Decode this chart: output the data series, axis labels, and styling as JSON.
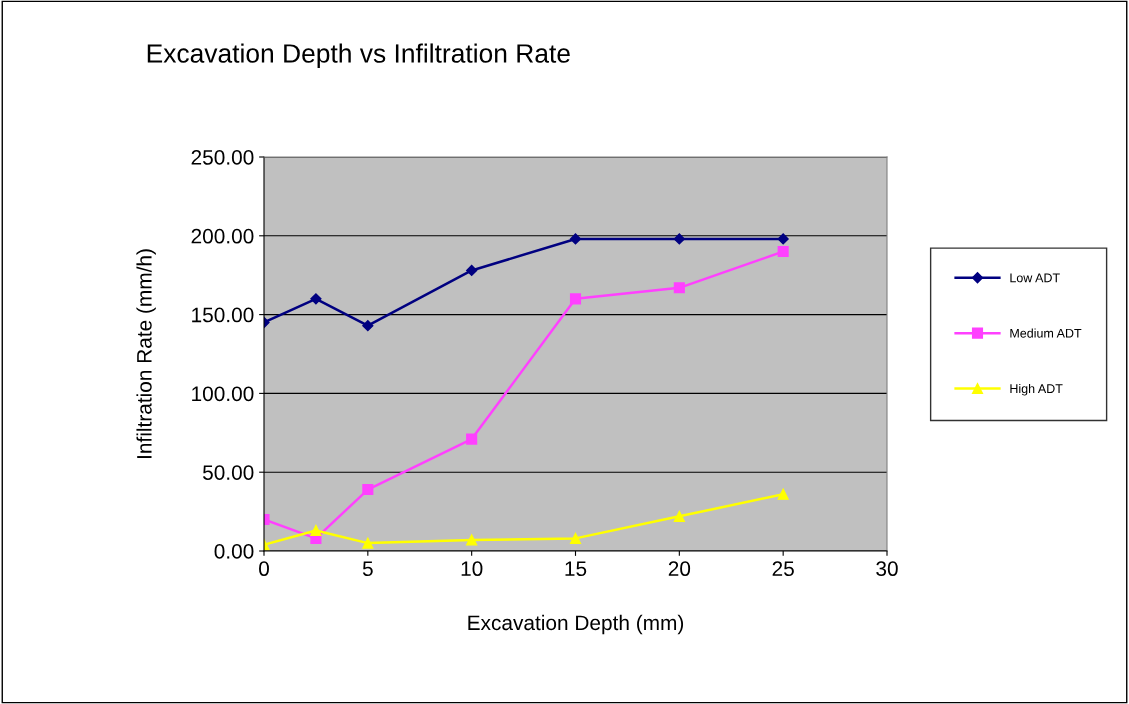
{
  "chart_data": {
    "type": "line",
    "title": "Excavation Depth vs Infiltration Rate",
    "xlabel": "Excavation Depth (mm)",
    "ylabel": "Infiltration Rate (mm/h)",
    "x": [
      0,
      2.5,
      5,
      10,
      15,
      20,
      25
    ],
    "series": [
      {
        "name": "Low ADT",
        "color": "#000080",
        "marker": "diamond",
        "values": [
          145,
          160,
          143,
          178,
          198,
          198,
          198
        ]
      },
      {
        "name": "Medium ADT",
        "color": "#ff40ff",
        "marker": "square",
        "values": [
          20,
          8,
          39,
          71,
          160,
          167,
          190
        ]
      },
      {
        "name": "High ADT",
        "color": "#ffff00",
        "marker": "triangle",
        "values": [
          4,
          13,
          5,
          7,
          8,
          22,
          36
        ]
      }
    ],
    "xlim": [
      0,
      30
    ],
    "xticks": [
      0,
      5,
      10,
      15,
      20,
      25,
      30
    ],
    "ylim": [
      0,
      250
    ],
    "yticks": [
      {
        "value": 0,
        "label": "0.00"
      },
      {
        "value": 50,
        "label": "50.00"
      },
      {
        "value": 100,
        "label": "100.00"
      },
      {
        "value": 150,
        "label": "150.00"
      },
      {
        "value": 200,
        "label": "200.00"
      },
      {
        "value": 250,
        "label": "250.00"
      }
    ],
    "grid": "y",
    "legend": "right",
    "line_style": "solid"
  }
}
